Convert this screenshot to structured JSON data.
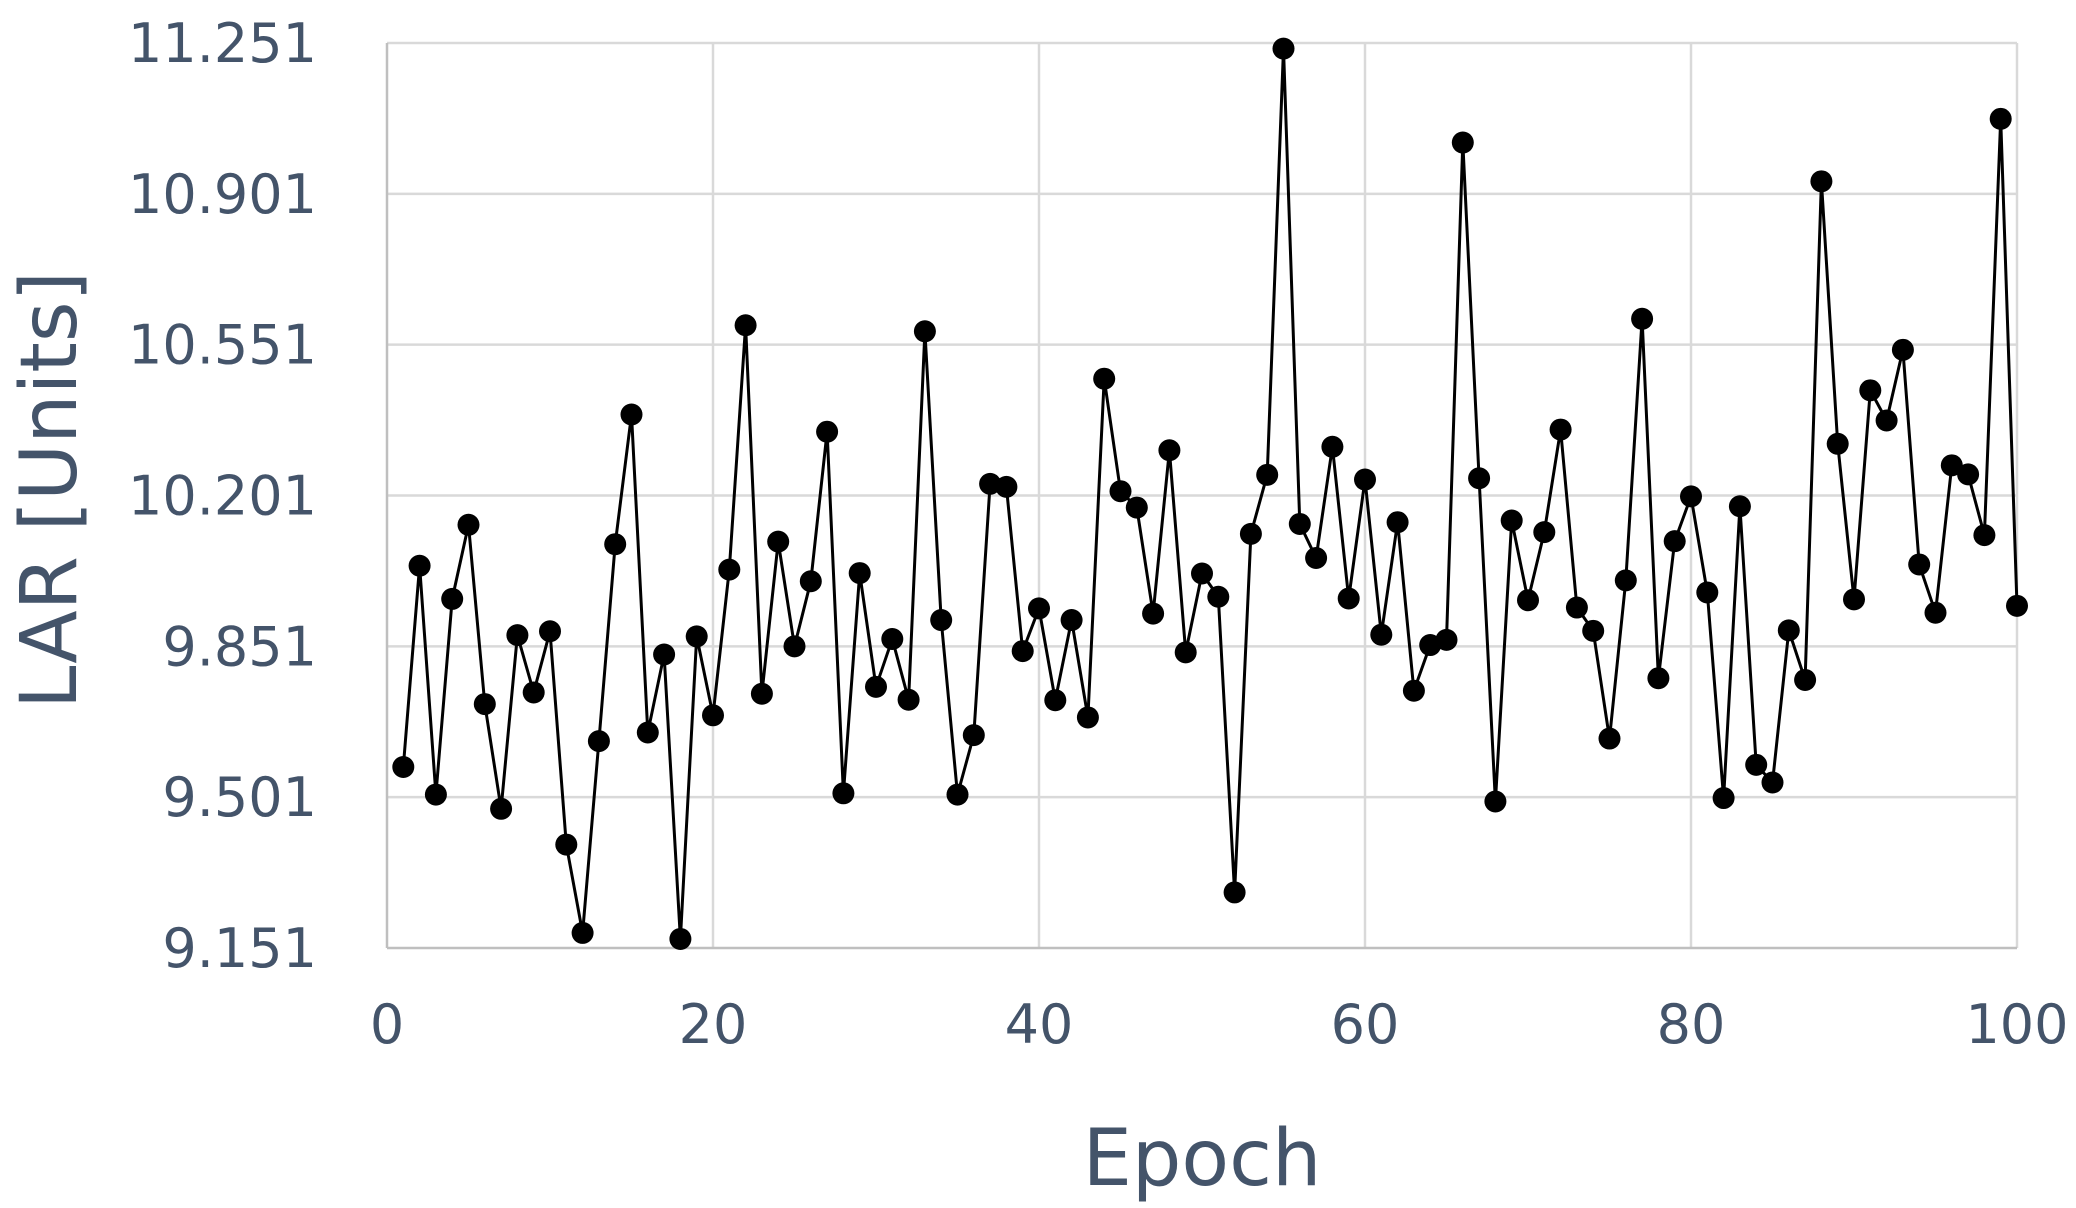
{
  "chart_data": {
    "type": "line",
    "title": "",
    "xlabel": "Epoch",
    "ylabel": "LAR [Units]",
    "xlim": [
      0,
      100
    ],
    "ylim": [
      9.151,
      11.251
    ],
    "xticks": [
      0,
      20,
      40,
      60,
      80,
      100
    ],
    "yticks": [
      9.151,
      9.501,
      9.851,
      10.201,
      10.551,
      10.901,
      11.251
    ],
    "xtick_labels": [
      "0",
      "20",
      "40",
      "60",
      "80",
      "100"
    ],
    "ytick_labels": [
      "9.151",
      "9.501",
      "9.851",
      "10.201",
      "10.551",
      "10.901",
      "11.251"
    ],
    "grid": true,
    "legend": "none",
    "colors": {
      "series": "#000000",
      "grid": "#d9d9d9",
      "text": "#44546a"
    },
    "x": [
      1,
      2,
      3,
      4,
      5,
      6,
      7,
      8,
      9,
      10,
      11,
      12,
      13,
      14,
      15,
      16,
      17,
      18,
      19,
      20,
      21,
      22,
      23,
      24,
      25,
      26,
      27,
      28,
      29,
      30,
      31,
      32,
      33,
      34,
      35,
      36,
      37,
      38,
      39,
      40,
      41,
      42,
      43,
      44,
      45,
      46,
      47,
      48,
      49,
      50,
      51,
      52,
      53,
      54,
      55,
      56,
      57,
      58,
      59,
      60,
      61,
      62,
      63,
      64,
      65,
      66,
      67,
      68,
      69,
      70,
      71,
      72,
      73,
      74,
      75,
      76,
      77,
      78,
      79,
      80,
      81,
      82,
      83,
      84,
      85,
      86,
      87,
      88,
      89,
      90,
      91,
      92,
      93,
      94,
      95,
      96,
      97,
      98,
      99,
      100
    ],
    "series": [
      {
        "values": [
          9.571,
          10.038,
          9.507,
          9.961,
          10.133,
          9.717,
          9.474,
          9.877,
          9.744,
          9.886,
          9.391,
          9.186,
          9.631,
          10.088,
          10.389,
          9.651,
          9.832,
          9.172,
          9.874,
          9.691,
          10.029,
          10.596,
          9.741,
          10.094,
          9.851,
          10.002,
          10.349,
          9.51,
          10.021,
          9.757,
          9.868,
          9.727,
          10.582,
          9.912,
          9.507,
          9.645,
          10.228,
          10.221,
          9.84,
          9.939,
          9.726,
          9.912,
          9.686,
          10.472,
          10.211,
          10.173,
          9.927,
          10.306,
          9.837,
          10.02,
          9.966,
          9.28,
          10.112,
          10.249,
          11.238,
          10.135,
          10.056,
          10.314,
          9.962,
          10.238,
          9.878,
          10.139,
          9.748,
          9.854,
          9.866,
          11.02,
          10.241,
          9.491,
          10.143,
          9.958,
          10.116,
          10.354,
          9.941,
          9.887,
          9.637,
          10.004,
          10.611,
          9.777,
          10.095,
          10.199,
          9.976,
          9.499,
          10.176,
          9.576,
          9.535,
          9.888,
          9.773,
          10.93,
          10.321,
          9.96,
          10.445,
          10.375,
          10.539,
          10.041,
          9.929,
          10.271,
          10.25,
          10.109,
          11.075,
          9.945
        ]
      }
    ]
  }
}
